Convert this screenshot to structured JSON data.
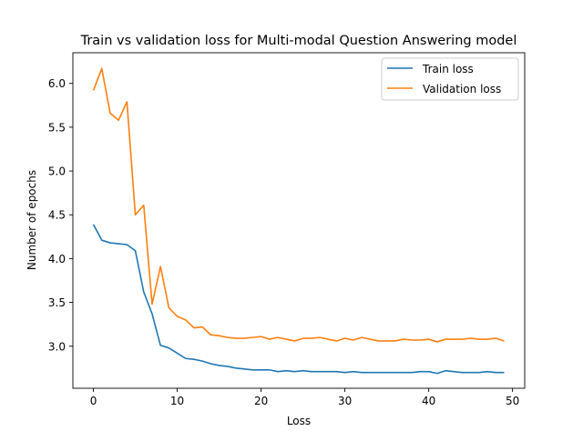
{
  "chart_data": {
    "type": "line",
    "title": "Train vs validation loss for Multi-modal Question Answering model",
    "xlabel": "Loss",
    "ylabel": "Number of epochs",
    "xlim": [
      -2.45,
      51.45
    ],
    "ylim": [
      2.52,
      6.35
    ],
    "xticks": [
      0,
      10,
      20,
      30,
      40,
      50
    ],
    "yticks": [
      3.0,
      3.5,
      4.0,
      4.5,
      5.0,
      5.5,
      6.0
    ],
    "grid": false,
    "legend_position": "top-right",
    "x": [
      0,
      1,
      2,
      3,
      4,
      5,
      6,
      7,
      8,
      9,
      10,
      11,
      12,
      13,
      14,
      15,
      16,
      17,
      18,
      19,
      20,
      21,
      22,
      23,
      24,
      25,
      26,
      27,
      28,
      29,
      30,
      31,
      32,
      33,
      34,
      35,
      36,
      37,
      38,
      39,
      40,
      41,
      42,
      43,
      44,
      45,
      46,
      47,
      48,
      49
    ],
    "series": [
      {
        "name": "Train loss",
        "color": "#1f77b4",
        "values": [
          4.39,
          4.21,
          4.18,
          4.17,
          4.16,
          4.09,
          3.62,
          3.37,
          3.01,
          2.98,
          2.92,
          2.86,
          2.85,
          2.83,
          2.8,
          2.78,
          2.77,
          2.75,
          2.74,
          2.73,
          2.73,
          2.73,
          2.71,
          2.72,
          2.71,
          2.72,
          2.71,
          2.71,
          2.71,
          2.71,
          2.7,
          2.71,
          2.7,
          2.7,
          2.7,
          2.7,
          2.7,
          2.7,
          2.7,
          2.71,
          2.71,
          2.69,
          2.72,
          2.71,
          2.7,
          2.7,
          2.7,
          2.71,
          2.7,
          2.7
        ]
      },
      {
        "name": "Validation loss",
        "color": "#ff7f0e",
        "values": [
          5.92,
          6.17,
          5.66,
          5.58,
          5.79,
          4.5,
          4.61,
          3.48,
          3.91,
          3.44,
          3.34,
          3.3,
          3.21,
          3.22,
          3.13,
          3.12,
          3.1,
          3.09,
          3.09,
          3.1,
          3.11,
          3.08,
          3.1,
          3.08,
          3.06,
          3.09,
          3.09,
          3.1,
          3.08,
          3.06,
          3.09,
          3.07,
          3.1,
          3.08,
          3.06,
          3.06,
          3.06,
          3.08,
          3.07,
          3.07,
          3.08,
          3.05,
          3.08,
          3.08,
          3.08,
          3.09,
          3.08,
          3.08,
          3.09,
          3.06
        ]
      }
    ]
  }
}
